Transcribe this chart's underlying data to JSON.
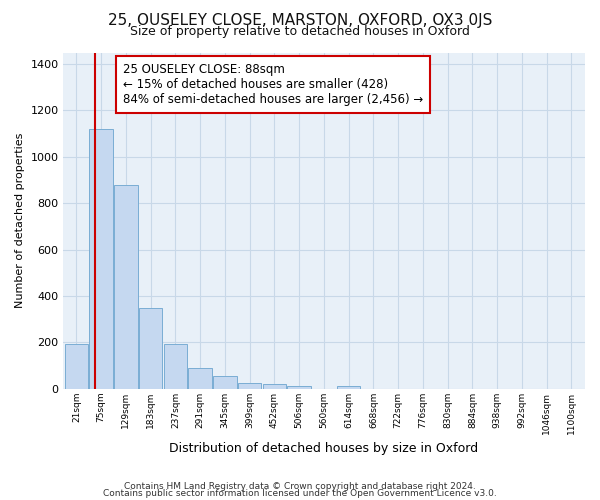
{
  "title": "25, OUSELEY CLOSE, MARSTON, OXFORD, OX3 0JS",
  "subtitle": "Size of property relative to detached houses in Oxford",
  "xlabel": "Distribution of detached houses by size in Oxford",
  "ylabel": "Number of detached properties",
  "bar_labels": [
    "21sqm",
    "75sqm",
    "129sqm",
    "183sqm",
    "237sqm",
    "291sqm",
    "345sqm",
    "399sqm",
    "452sqm",
    "506sqm",
    "560sqm",
    "614sqm",
    "668sqm",
    "722sqm",
    "776sqm",
    "830sqm",
    "884sqm",
    "938sqm",
    "992sqm",
    "1046sqm",
    "1100sqm"
  ],
  "bar_values": [
    195,
    1120,
    880,
    350,
    195,
    90,
    55,
    25,
    20,
    10,
    0,
    10,
    0,
    0,
    0,
    0,
    0,
    0,
    0,
    0,
    0
  ],
  "bar_color": "#c5d8f0",
  "bar_edge_color": "#7aadd4",
  "red_line_x": 1.25,
  "annotation_text": "25 OUSELEY CLOSE: 88sqm\n← 15% of detached houses are smaller (428)\n84% of semi-detached houses are larger (2,456) →",
  "annotation_box_color": "#ffffff",
  "annotation_box_edge_color": "#cc0000",
  "ylim": [
    0,
    1450
  ],
  "yticks": [
    0,
    200,
    400,
    600,
    800,
    1000,
    1200,
    1400
  ],
  "footer_line1": "Contains HM Land Registry data © Crown copyright and database right 2024.",
  "footer_line2": "Contains public sector information licensed under the Open Government Licence v3.0.",
  "bg_color": "#ffffff",
  "grid_color": "#c8d8e8",
  "title_fontsize": 11,
  "subtitle_fontsize": 9,
  "annotation_fontsize": 8.5,
  "footer_fontsize": 6.5,
  "ylabel_fontsize": 8,
  "xlabel_fontsize": 9
}
